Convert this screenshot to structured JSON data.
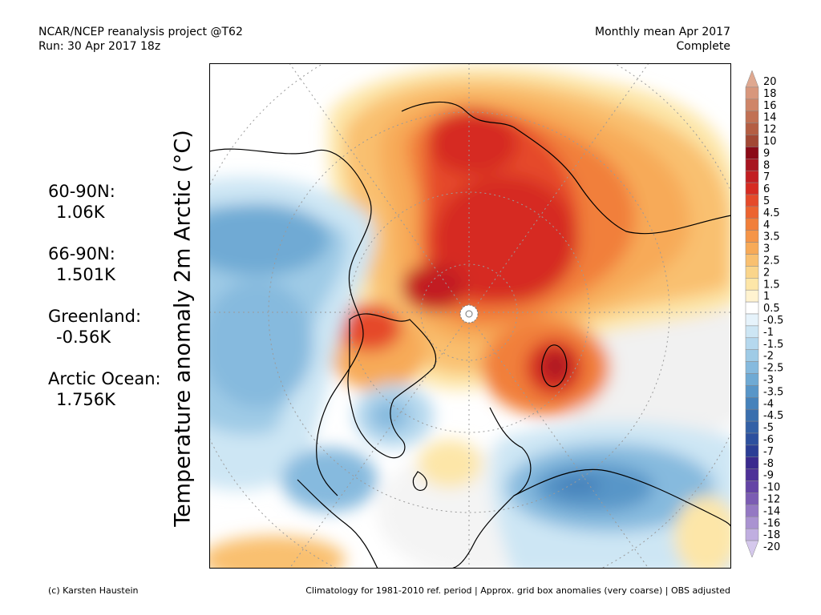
{
  "header": {
    "title_left": "NCAR/NCEP reanalysis project @T62",
    "run_label": "Run: 30 Apr 2017 18z",
    "title_right": "Monthly mean Apr 2017",
    "status": "Complete"
  },
  "axis_label": "Temperature anomaly 2m Arctic (°C)",
  "stats": [
    {
      "label": "60-90N:",
      "value": "1.06K"
    },
    {
      "label": "66-90N:",
      "value": "1.501K"
    },
    {
      "label": "Greenland:",
      "value": "-0.56K"
    },
    {
      "label": "Arctic Ocean:",
      "value": "1.756K"
    }
  ],
  "colorbar": {
    "labels": [
      "20",
      "18",
      "16",
      "14",
      "12",
      "10",
      "9",
      "8",
      "7",
      "6",
      "5",
      "4.5",
      "4",
      "3.5",
      "3",
      "2.5",
      "2",
      "1.5",
      "1",
      "0.5",
      "-0.5",
      "-1",
      "-1.5",
      "-2",
      "-2.5",
      "-3",
      "-3.5",
      "-4",
      "-4.5",
      "-5",
      "-6",
      "-7",
      "-8",
      "-9",
      "-10",
      "-12",
      "-14",
      "-16",
      "-18",
      "-20"
    ],
    "colors": [
      "#dfa890",
      "#d8977c",
      "#cf8568",
      "#c17154",
      "#b45e43",
      "#a24834",
      "#8b0a17",
      "#a81520",
      "#c21e22",
      "#d62b22",
      "#e54a2a",
      "#ec6430",
      "#f17f3a",
      "#f59548",
      "#f7aa58",
      "#f9c070",
      "#fad58b",
      "#fde6a8",
      "#fff3d0",
      "#ffffff",
      "#e6f3fb",
      "#cde6f4",
      "#b5d8ee",
      "#9fcbe6",
      "#86bade",
      "#6faad4",
      "#5896c8",
      "#4682bb",
      "#3a6fae",
      "#3461a6",
      "#2d509e",
      "#2b3e95",
      "#3a2a8e",
      "#4e3198",
      "#6444a5",
      "#7b5cb3",
      "#9478c3",
      "#aa93d1",
      "#c0aee0",
      "#d5c8ec"
    ]
  },
  "footer": {
    "credit": "(c) Karsten Haustein",
    "note": "Climatology for 1981-2010 ref. period | Approx. grid box anomalies (very coarse) | OBS adjusted"
  }
}
